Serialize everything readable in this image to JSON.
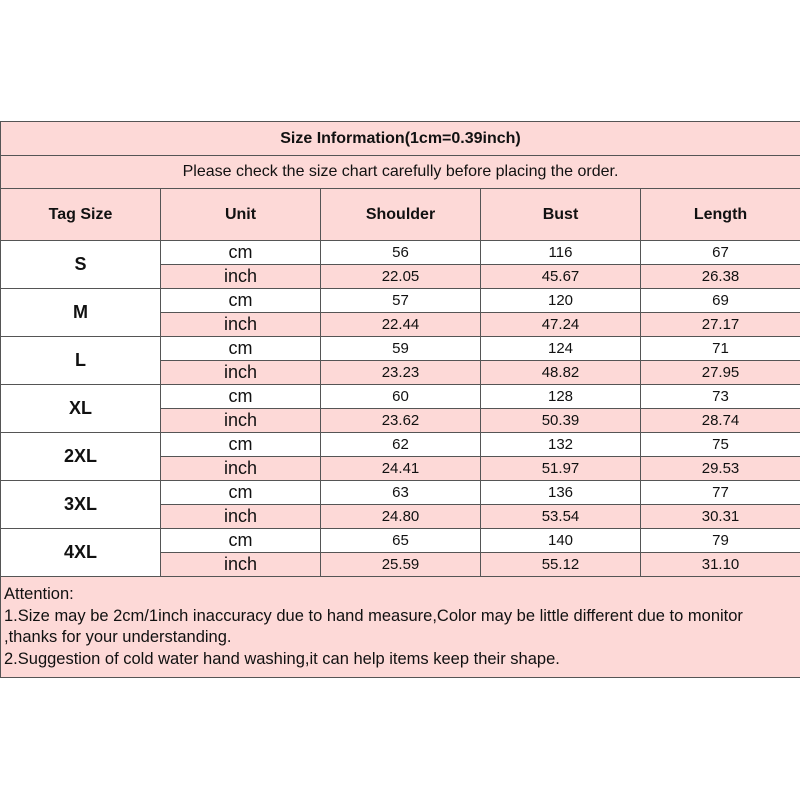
{
  "title": "Size Information(1cm=0.39inch)",
  "subtitle": "Please check the size chart carefully before placing the order.",
  "headers": [
    "Tag Size",
    "Unit",
    "Shoulder",
    "Bust",
    "Length"
  ],
  "colors": {
    "pink": "#fdd9d7",
    "white": "#ffffff"
  },
  "rows": [
    {
      "size": "S",
      "cm": {
        "unit": "cm",
        "values": [
          "56",
          "116",
          "67"
        ]
      },
      "inch": {
        "unit": "inch",
        "values": [
          "22.05",
          "45.67",
          "26.38"
        ]
      }
    },
    {
      "size": "M",
      "cm": {
        "unit": "cm",
        "values": [
          "57",
          "120",
          "69"
        ]
      },
      "inch": {
        "unit": "inch",
        "values": [
          "22.44",
          "47.24",
          "27.17"
        ]
      }
    },
    {
      "size": "L",
      "cm": {
        "unit": "cm",
        "values": [
          "59",
          "124",
          "71"
        ]
      },
      "inch": {
        "unit": "inch",
        "values": [
          "23.23",
          "48.82",
          "27.95"
        ]
      }
    },
    {
      "size": "XL",
      "cm": {
        "unit": "cm",
        "values": [
          "60",
          "128",
          "73"
        ]
      },
      "inch": {
        "unit": "inch",
        "values": [
          "23.62",
          "50.39",
          "28.74"
        ]
      }
    },
    {
      "size": "2XL",
      "cm": {
        "unit": "cm",
        "values": [
          "62",
          "132",
          "75"
        ]
      },
      "inch": {
        "unit": "inch",
        "values": [
          "24.41",
          "51.97",
          "29.53"
        ]
      }
    },
    {
      "size": "3XL",
      "cm": {
        "unit": "cm",
        "values": [
          "63",
          "136",
          "77"
        ]
      },
      "inch": {
        "unit": "inch",
        "values": [
          "24.80",
          "53.54",
          "30.31"
        ]
      }
    },
    {
      "size": "4XL",
      "cm": {
        "unit": "cm",
        "values": [
          "65",
          "140",
          "79"
        ]
      },
      "inch": {
        "unit": "inch",
        "values": [
          "25.59",
          "55.12",
          "31.10"
        ]
      }
    }
  ],
  "notes": [
    "Attention:",
    "1.Size may be 2cm/1inch inaccuracy due to hand measure,Color may be little different due to monitor",
    ",thanks for your understanding.",
    "2.Suggestion of cold water hand washing,it can help items keep their shape."
  ]
}
